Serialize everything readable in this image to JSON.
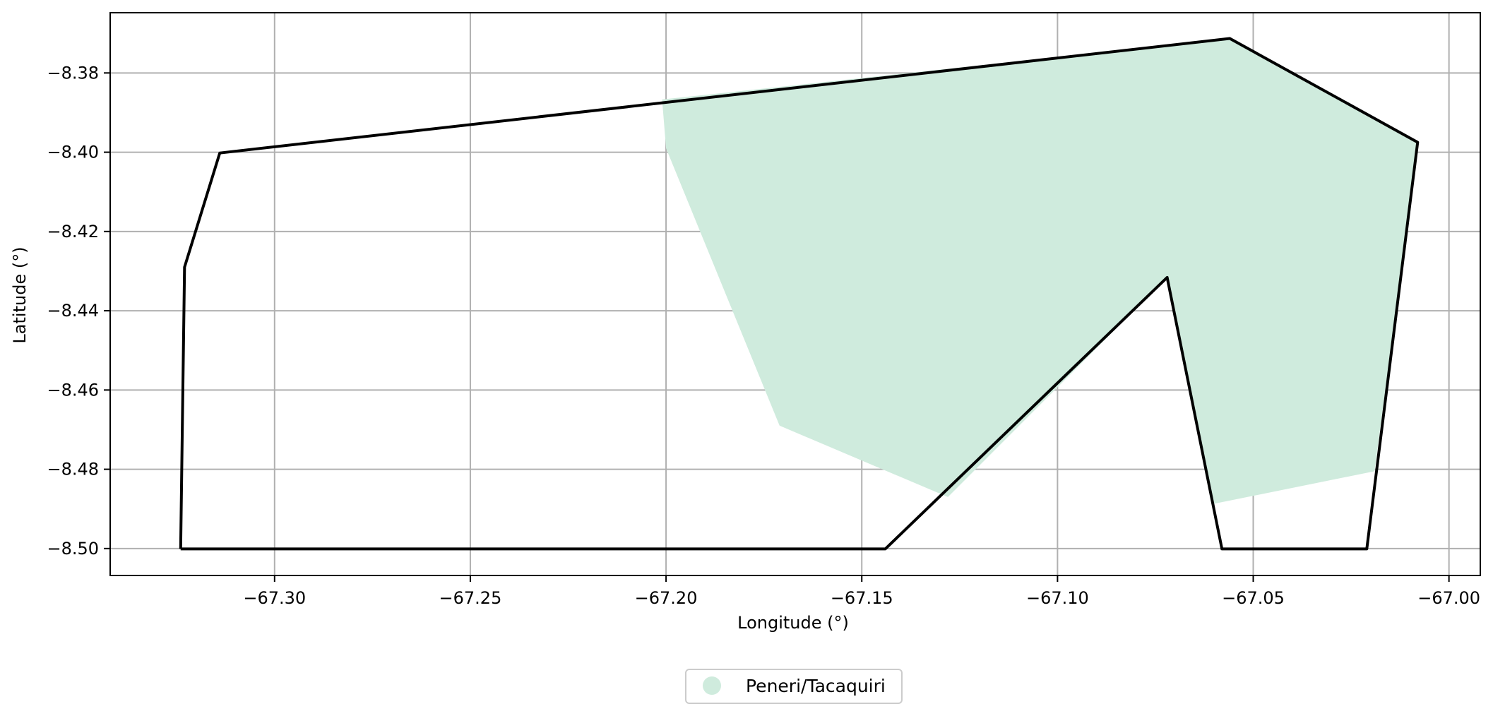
{
  "chart_data": {
    "type": "map",
    "xlabel": "Longitude (°)",
    "ylabel": "Latitude (°)",
    "xlim": [
      -67.342,
      -66.992
    ],
    "ylim": [
      -8.5068,
      -8.3648
    ],
    "grid": true,
    "x_ticks": [
      -67.3,
      -67.25,
      -67.2,
      -67.15,
      -67.1,
      -67.05,
      -67.0
    ],
    "x_tick_labels": [
      "−67.30",
      "−67.25",
      "−67.20",
      "−67.15",
      "−67.10",
      "−67.05",
      "−67.00"
    ],
    "y_ticks": [
      -8.38,
      -8.4,
      -8.42,
      -8.44,
      -8.46,
      -8.48,
      -8.5
    ],
    "y_tick_labels": [
      "−8.38",
      "−8.40",
      "−8.42",
      "−8.44",
      "−8.46",
      "−8.48",
      "−8.50"
    ],
    "legend_position": "bottom-center",
    "boundary": {
      "color": "#000000",
      "coordinates": [
        [
          -67.324,
          -8.5001
        ],
        [
          -67.323,
          -8.429
        ],
        [
          -67.314,
          -8.4002
        ],
        [
          -67.056,
          -8.3713
        ],
        [
          -67.008,
          -8.3975
        ],
        [
          -67.021,
          -8.5001
        ],
        [
          -67.058,
          -8.5001
        ],
        [
          -67.072,
          -8.4316
        ],
        [
          -67.144,
          -8.5001
        ],
        [
          -67.324,
          -8.5001
        ]
      ]
    },
    "series": [
      {
        "name": "Peneri/Tacaquiri",
        "color": "#cfebdd",
        "polygon": [
          [
            -67.201,
            -8.3867
          ],
          [
            -67.056,
            -8.3713
          ],
          [
            -67.008,
            -8.3975
          ],
          [
            -67.019,
            -8.4805
          ],
          [
            -67.06,
            -8.4887
          ],
          [
            -67.072,
            -8.4316
          ],
          [
            -67.128,
            -8.487
          ],
          [
            -67.171,
            -8.469
          ],
          [
            -67.2,
            -8.399
          ]
        ]
      }
    ]
  },
  "legend": {
    "items": [
      {
        "label": "Peneri/Tacaquiri",
        "color": "#cfebdd"
      }
    ]
  }
}
